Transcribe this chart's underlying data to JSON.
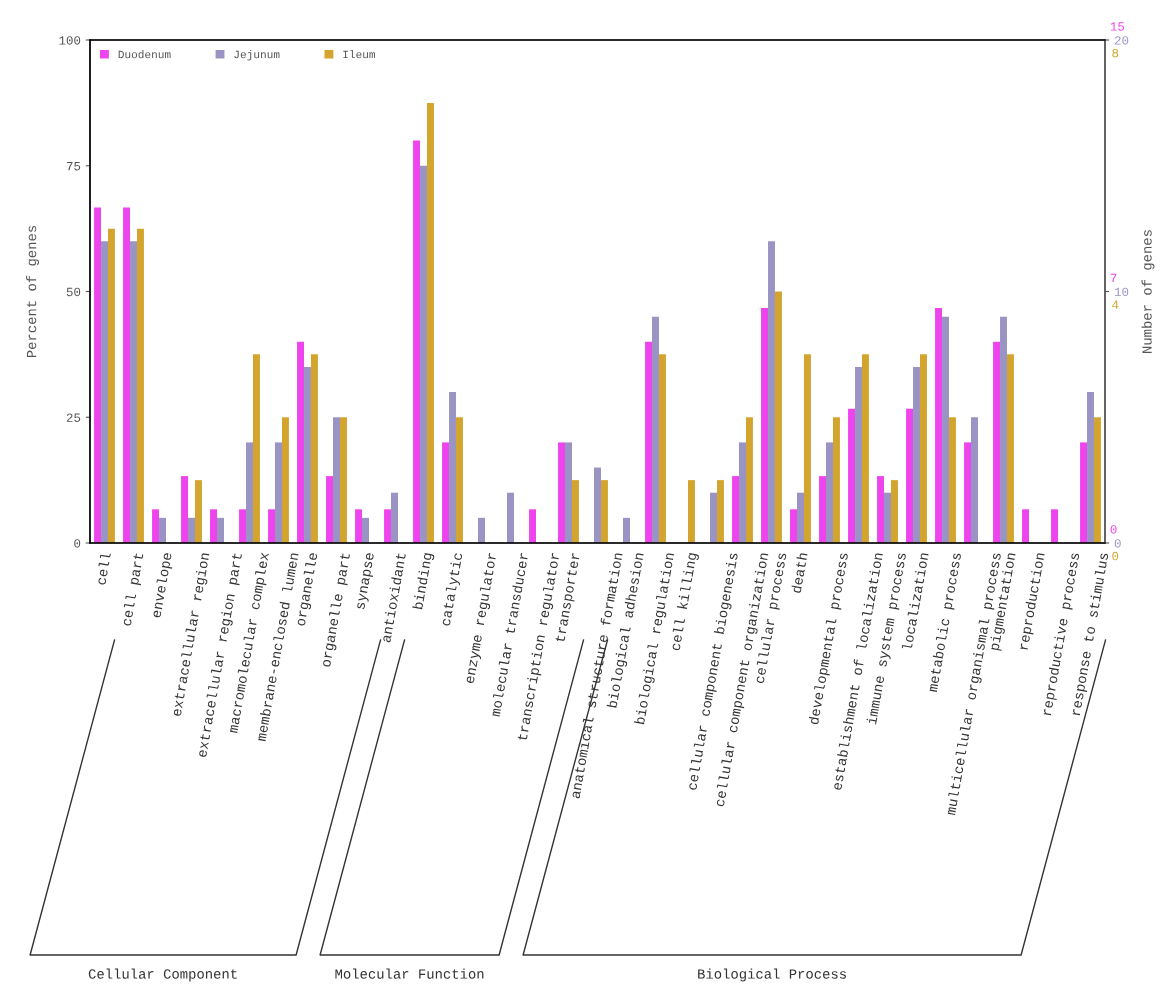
{
  "chart_data": {
    "type": "bar",
    "ylabel": "Percent of genes",
    "y2label": "Number of genes",
    "categories": [
      "cell",
      "cell part",
      "envelope",
      "extracellular region",
      "extracellular region part",
      "macromolecular complex",
      "membrane-enclosed lumen",
      "organelle",
      "organelle part",
      "synapse",
      "antioxidant",
      "binding",
      "catalytic",
      "enzyme regulator",
      "molecular transducer",
      "transcription regulator",
      "transporter",
      "anatomical structure formation",
      "biological adhesion",
      "biological regulation",
      "cell killing",
      "cellular component biogenesis",
      "cellular component organization",
      "cellular process",
      "death",
      "developmental process",
      "establishment of localization",
      "immune system process",
      "localization",
      "metabolic process",
      "multicellular organismal process",
      "pigmentation",
      "reproduction",
      "reproductive process",
      "response to stimulus"
    ],
    "series": [
      {
        "name": "Duodenum",
        "color": "#ee44ee",
        "values": [
          66.7,
          66.7,
          6.7,
          13.3,
          6.7,
          6.7,
          6.7,
          40,
          13.3,
          6.7,
          6.7,
          80,
          20,
          0,
          0,
          6.7,
          20,
          0,
          0,
          40,
          0,
          0,
          13.3,
          46.7,
          6.7,
          13.3,
          26.7,
          13.3,
          26.7,
          46.7,
          20,
          40,
          6.7,
          6.7,
          20
        ]
      },
      {
        "name": "Jejunum",
        "color": "#9a94c4",
        "values": [
          60,
          60,
          5,
          5,
          5,
          20,
          20,
          35,
          25,
          5,
          10,
          75,
          30,
          5,
          10,
          0,
          20,
          15,
          5,
          45,
          0,
          10,
          20,
          60,
          10,
          20,
          35,
          10,
          35,
          45,
          25,
          45,
          0,
          0,
          30
        ]
      },
      {
        "name": "Ileum",
        "color": "#d4a52e",
        "values": [
          62.5,
          62.5,
          0,
          12.5,
          0,
          37.5,
          25,
          37.5,
          25,
          0,
          0,
          87.5,
          25,
          0,
          0,
          0,
          12.5,
          12.5,
          0,
          37.5,
          12.5,
          12.5,
          25,
          50,
          37.5,
          25,
          37.5,
          12.5,
          37.5,
          25,
          0,
          37.5,
          0,
          0,
          25
        ]
      }
    ],
    "ylim": [
      0,
      100
    ],
    "yticks": [
      0,
      25,
      50,
      75,
      100
    ],
    "y2lim": [
      0,
      15
    ],
    "y2ticks": [
      0,
      {
        "value": 7.5,
        "label": "7"
      },
      15
    ],
    "y3lim": [
      0,
      20
    ],
    "y3ticks": [
      0,
      10,
      20
    ],
    "annotations": [
      "Cellular Component",
      "Molecular Function",
      "Biological Process",
      "8",
      "4",
      "0"
    ],
    "legend": "top left",
    "grid": false
  }
}
